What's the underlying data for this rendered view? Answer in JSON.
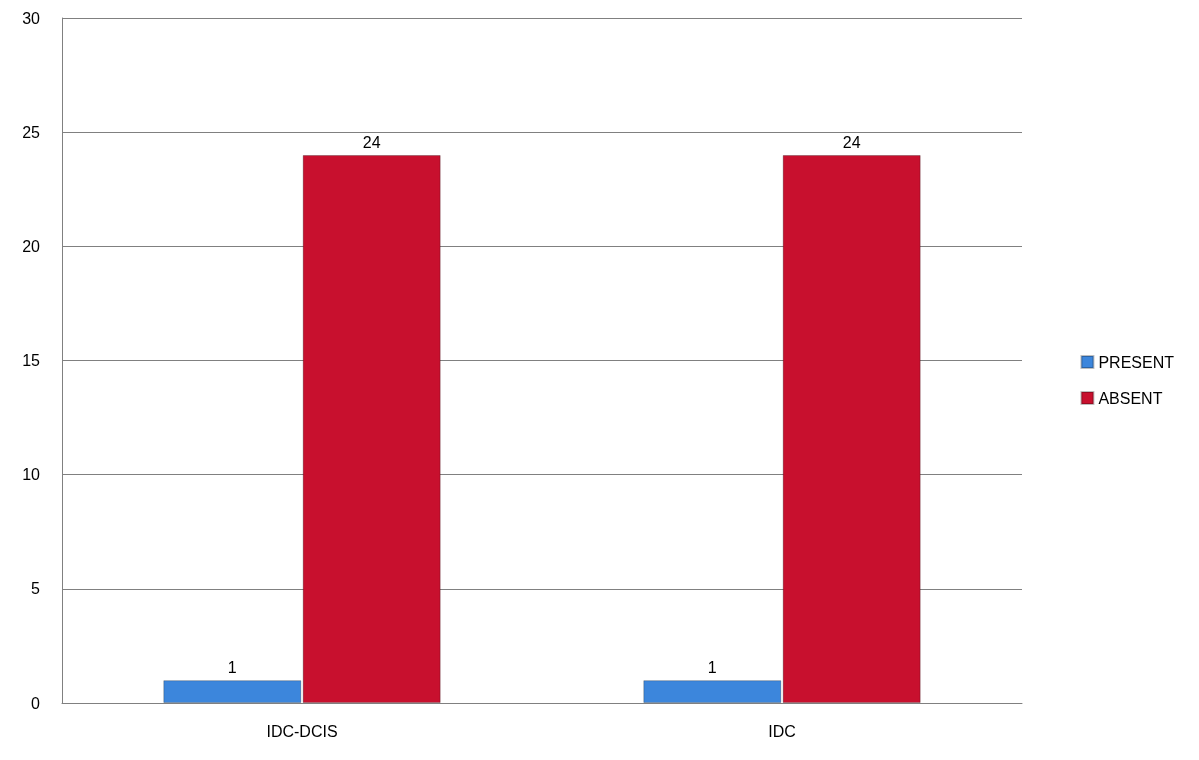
{
  "chart_data": {
    "type": "bar",
    "categories": [
      "IDC-DCIS",
      "IDC"
    ],
    "series": [
      {
        "name": "PRESENT",
        "color": "#3c86dc",
        "values": [
          1,
          1
        ]
      },
      {
        "name": "ABSENT",
        "color": "#c8102e",
        "values": [
          24,
          24
        ]
      }
    ],
    "ylim": [
      0,
      30
    ],
    "yticks": [
      0,
      5,
      10,
      15,
      20,
      25,
      30
    ],
    "grid": "y",
    "legend": "right",
    "data_labels": true
  }
}
